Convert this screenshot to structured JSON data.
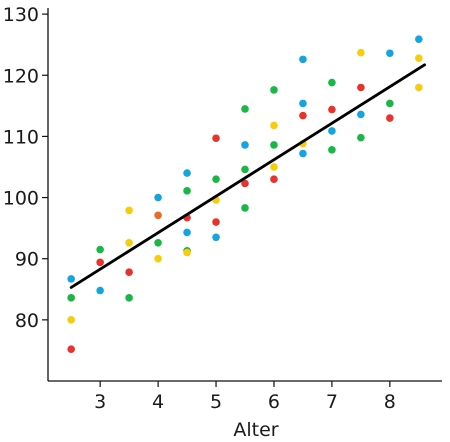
{
  "chart_data": {
    "type": "scatter",
    "title": "",
    "xlabel": "Alter",
    "ylabel": "",
    "xlim": [
      2.1,
      8.9
    ],
    "ylim": [
      70,
      131
    ],
    "xticks": [
      3,
      4,
      5,
      6,
      7,
      8
    ],
    "yticks": [
      80,
      90,
      100,
      110,
      120,
      130
    ],
    "grid": false,
    "legend": "none",
    "colors": {
      "blue": "#14a5e0",
      "green": "#19b844",
      "red": "#e8322b",
      "yellow": "#f7cd0b",
      "orange": "#eb6a26",
      "line": "#000000"
    },
    "points": [
      {
        "x": 2.5,
        "y": 86.7,
        "color": "blue"
      },
      {
        "x": 2.5,
        "y": 83.6,
        "color": "green"
      },
      {
        "x": 2.5,
        "y": 80.0,
        "color": "yellow"
      },
      {
        "x": 2.5,
        "y": 75.2,
        "color": "red"
      },
      {
        "x": 3.0,
        "y": 91.5,
        "color": "green"
      },
      {
        "x": 3.0,
        "y": 89.4,
        "color": "red"
      },
      {
        "x": 3.0,
        "y": 84.8,
        "color": "blue"
      },
      {
        "x": 3.5,
        "y": 97.9,
        "color": "yellow"
      },
      {
        "x": 3.5,
        "y": 92.6,
        "color": "yellow"
      },
      {
        "x": 3.5,
        "y": 87.8,
        "color": "red"
      },
      {
        "x": 3.5,
        "y": 83.6,
        "color": "green"
      },
      {
        "x": 4.0,
        "y": 100.0,
        "color": "blue"
      },
      {
        "x": 4.0,
        "y": 97.1,
        "color": "orange"
      },
      {
        "x": 4.0,
        "y": 92.6,
        "color": "green"
      },
      {
        "x": 4.0,
        "y": 90.0,
        "color": "yellow"
      },
      {
        "x": 4.5,
        "y": 104.0,
        "color": "blue"
      },
      {
        "x": 4.5,
        "y": 101.1,
        "color": "green"
      },
      {
        "x": 4.5,
        "y": 96.7,
        "color": "red"
      },
      {
        "x": 4.5,
        "y": 94.3,
        "color": "blue"
      },
      {
        "x": 4.5,
        "y": 91.3,
        "color": "green"
      },
      {
        "x": 4.5,
        "y": 91.0,
        "color": "yellow"
      },
      {
        "x": 5.0,
        "y": 109.7,
        "color": "red"
      },
      {
        "x": 5.0,
        "y": 103.0,
        "color": "green"
      },
      {
        "x": 5.0,
        "y": 99.6,
        "color": "yellow"
      },
      {
        "x": 5.0,
        "y": 96.0,
        "color": "red"
      },
      {
        "x": 5.0,
        "y": 93.5,
        "color": "blue"
      },
      {
        "x": 5.5,
        "y": 114.5,
        "color": "green"
      },
      {
        "x": 5.5,
        "y": 108.6,
        "color": "blue"
      },
      {
        "x": 5.5,
        "y": 104.6,
        "color": "green"
      },
      {
        "x": 5.5,
        "y": 102.3,
        "color": "red"
      },
      {
        "x": 5.5,
        "y": 98.3,
        "color": "green"
      },
      {
        "x": 6.0,
        "y": 117.6,
        "color": "green"
      },
      {
        "x": 6.0,
        "y": 111.8,
        "color": "yellow"
      },
      {
        "x": 6.0,
        "y": 108.6,
        "color": "green"
      },
      {
        "x": 6.0,
        "y": 105.0,
        "color": "yellow"
      },
      {
        "x": 6.0,
        "y": 103.0,
        "color": "red"
      },
      {
        "x": 6.5,
        "y": 122.6,
        "color": "blue"
      },
      {
        "x": 6.5,
        "y": 115.4,
        "color": "blue"
      },
      {
        "x": 6.5,
        "y": 113.4,
        "color": "red"
      },
      {
        "x": 6.5,
        "y": 108.8,
        "color": "yellow"
      },
      {
        "x": 6.5,
        "y": 107.2,
        "color": "blue"
      },
      {
        "x": 7.0,
        "y": 118.8,
        "color": "green"
      },
      {
        "x": 7.0,
        "y": 114.4,
        "color": "red"
      },
      {
        "x": 7.0,
        "y": 110.9,
        "color": "blue"
      },
      {
        "x": 7.0,
        "y": 107.8,
        "color": "green"
      },
      {
        "x": 7.5,
        "y": 123.7,
        "color": "yellow"
      },
      {
        "x": 7.5,
        "y": 118.0,
        "color": "red"
      },
      {
        "x": 7.5,
        "y": 113.6,
        "color": "blue"
      },
      {
        "x": 7.5,
        "y": 109.8,
        "color": "green"
      },
      {
        "x": 8.0,
        "y": 123.6,
        "color": "blue"
      },
      {
        "x": 8.0,
        "y": 115.4,
        "color": "green"
      },
      {
        "x": 8.0,
        "y": 113.0,
        "color": "red"
      },
      {
        "x": 8.5,
        "y": 125.9,
        "color": "blue"
      },
      {
        "x": 8.5,
        "y": 122.8,
        "color": "yellow"
      },
      {
        "x": 8.5,
        "y": 118.0,
        "color": "yellow"
      }
    ],
    "trend_line": {
      "x": [
        2.5,
        8.6
      ],
      "y": [
        85.3,
        121.7
      ]
    }
  }
}
